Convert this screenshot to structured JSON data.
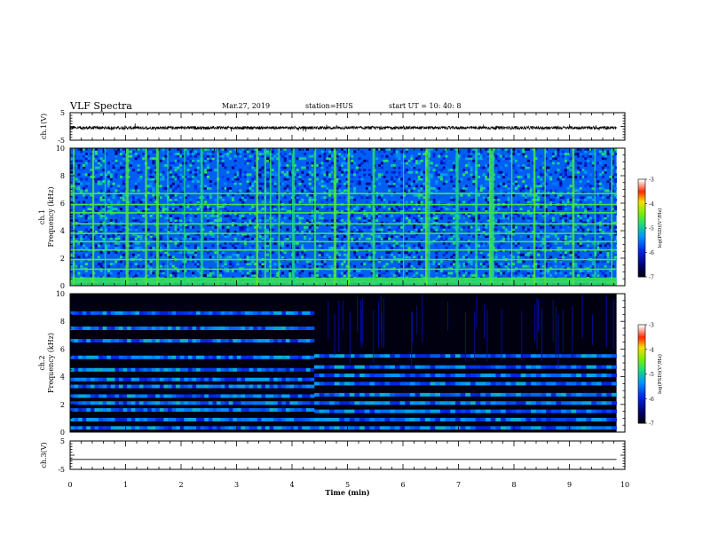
{
  "header": {
    "title": "VLF Spectra",
    "date": "Mar.27, 2019",
    "station": "station=HUS",
    "start_ut": "start  UT =   10: 40: 8"
  },
  "chart_data": [
    {
      "type": "line",
      "ylabel": "ch.1(V)",
      "ylim": [
        -5,
        5
      ],
      "yticks": [
        "5",
        "-5"
      ],
      "xlim": [
        0,
        10
      ],
      "series": [
        {
          "values_approx": "noisy trace near -0.5 V throughout"
        }
      ]
    },
    {
      "type": "heatmap",
      "ylabel_top": "ch.1",
      "ylabel": "Frequency  (kHz)",
      "ylim": [
        0,
        10
      ],
      "yticks": [
        "0",
        "2",
        "4",
        "6",
        "8",
        "10"
      ],
      "xlim": [
        0,
        10
      ],
      "data_end_min": 9.85,
      "colorbar": {
        "label": "log(PSD)(V²/Hz)",
        "range": [
          -7,
          -3
        ],
        "ticks": [
          "-3",
          "-4",
          "-5",
          "-6",
          "-7"
        ]
      },
      "features": {
        "background_level": -5.6,
        "noise_floor_below_khz": 0.6,
        "bright_lines_khz": [
          0.3,
          0.5,
          1.2,
          1.9,
          2.6,
          3.2,
          3.8,
          4.5,
          5.3,
          5.9,
          6.7
        ],
        "vertical_bursts_min": [
          0.05,
          0.4,
          0.62,
          1.0,
          1.35,
          1.55,
          1.75,
          2.05,
          2.35,
          2.65,
          3.35,
          3.5,
          3.6,
          3.75,
          4.0,
          4.4,
          4.75,
          5.0,
          5.45,
          6.0,
          6.4,
          6.45,
          6.95,
          7.3,
          7.55,
          7.6,
          7.95,
          8.35,
          8.55,
          9.05,
          9.45,
          9.75
        ]
      }
    },
    {
      "type": "heatmap",
      "ylabel_top": "ch.2",
      "ylabel": "Frequency  (kHz)",
      "ylim": [
        0,
        10
      ],
      "yticks": [
        "0",
        "2",
        "4",
        "6",
        "8",
        "10"
      ],
      "xlim": [
        0,
        10
      ],
      "data_end_min": 9.85,
      "colorbar": {
        "label": "log(PSD)(V²/Hz)",
        "range": [
          -7,
          -3
        ],
        "ticks": [
          "-3",
          "-4",
          "-5",
          "-6",
          "-7"
        ]
      },
      "features": {
        "change_time_min": 4.4,
        "bands_before_khz": [
          0.3,
          0.9,
          1.6,
          2.1,
          2.6,
          3.3,
          3.8,
          4.5,
          5.4,
          6.6,
          7.5,
          8.6
        ],
        "bands_after_khz": [
          0.3,
          0.9,
          1.5,
          2.1,
          2.7,
          3.5,
          4.1,
          4.7,
          5.5
        ]
      }
    },
    {
      "type": "line",
      "ylabel": "ch.3(V)",
      "ylim": [
        -5,
        5
      ],
      "yticks": [
        "5",
        "-5"
      ],
      "xlim": [
        0,
        10
      ],
      "xlabel": "Time  (min)",
      "xticks": [
        "0",
        "1",
        "2",
        "3",
        "4",
        "5",
        "6",
        "7",
        "8",
        "9",
        "10"
      ],
      "series": [
        {
          "values_approx": "flat line at -1.5 V"
        }
      ]
    }
  ]
}
